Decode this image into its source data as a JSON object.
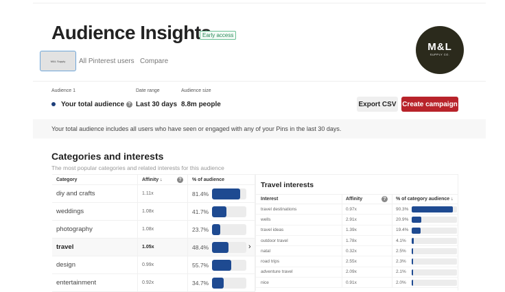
{
  "header": {
    "title": "Audience Insights",
    "badge": "Early access",
    "logo_main": "M&L",
    "logo_sub": "SUPPLY CO."
  },
  "tabs": [
    {
      "label": "M&L Supply",
      "active": true
    },
    {
      "label": "All Pinterest users"
    },
    {
      "label": "Compare"
    }
  ],
  "audience": {
    "audience_label": "Audience 1",
    "audience_value": "Your total audience",
    "date_label": "Date range",
    "date_value": "Last 30 days",
    "size_label": "Audience size",
    "size_value": "8.8m people",
    "dot_color": "#1e3f7a"
  },
  "actions": {
    "export": "Export CSV",
    "create": "Create campaign"
  },
  "info": "Your total audience includes all users who have seen or engaged with any of your Pins in the last 30 days.",
  "section": {
    "title": "Categories and interests",
    "subtitle": "The most popular categories and related interests for this audience"
  },
  "categories": {
    "headers": [
      "Category",
      "Affinity",
      "% of audience"
    ],
    "rows": [
      {
        "name": "diy and crafts",
        "affinity": "1.11x",
        "pct": "81.4%",
        "value": 81.4
      },
      {
        "name": "weddings",
        "affinity": "1.08x",
        "pct": "41.7%",
        "value": 41.7
      },
      {
        "name": "photography",
        "affinity": "1.08x",
        "pct": "23.7%",
        "value": 23.7
      },
      {
        "name": "travel",
        "affinity": "1.05x",
        "pct": "48.4%",
        "value": 48.4,
        "selected": true
      },
      {
        "name": "design",
        "affinity": "0.99x",
        "pct": "55.7%",
        "value": 55.7
      },
      {
        "name": "entertainment",
        "affinity": "0.92x",
        "pct": "34.7%",
        "value": 34.7
      }
    ]
  },
  "interests": {
    "title": "Travel interests",
    "headers": [
      "Interest",
      "Affinity",
      "% of category audience"
    ],
    "rows": [
      {
        "name": "travel destinations",
        "affinity": "0.97x",
        "pct": "90.3%",
        "value": 90.3
      },
      {
        "name": "wells",
        "affinity": "2.91x",
        "pct": "20.9%",
        "value": 20.9
      },
      {
        "name": "travel ideas",
        "affinity": "1.39x",
        "pct": "19.4%",
        "value": 19.4
      },
      {
        "name": "outdoor travel",
        "affinity": "1.78x",
        "pct": "4.1%",
        "value": 4.1
      },
      {
        "name": "natal",
        "affinity": "0.32x",
        "pct": "2.5%",
        "value": 2.5
      },
      {
        "name": "road trips",
        "affinity": "2.55x",
        "pct": "2.3%",
        "value": 2.3
      },
      {
        "name": "adventure travel",
        "affinity": "2.09x",
        "pct": "2.1%",
        "value": 2.1
      },
      {
        "name": "nice",
        "affinity": "0.91x",
        "pct": "2.0%",
        "value": 2.0
      }
    ]
  },
  "colors": {
    "bar": "#1e4a91",
    "primary_button": "#b8232a"
  }
}
